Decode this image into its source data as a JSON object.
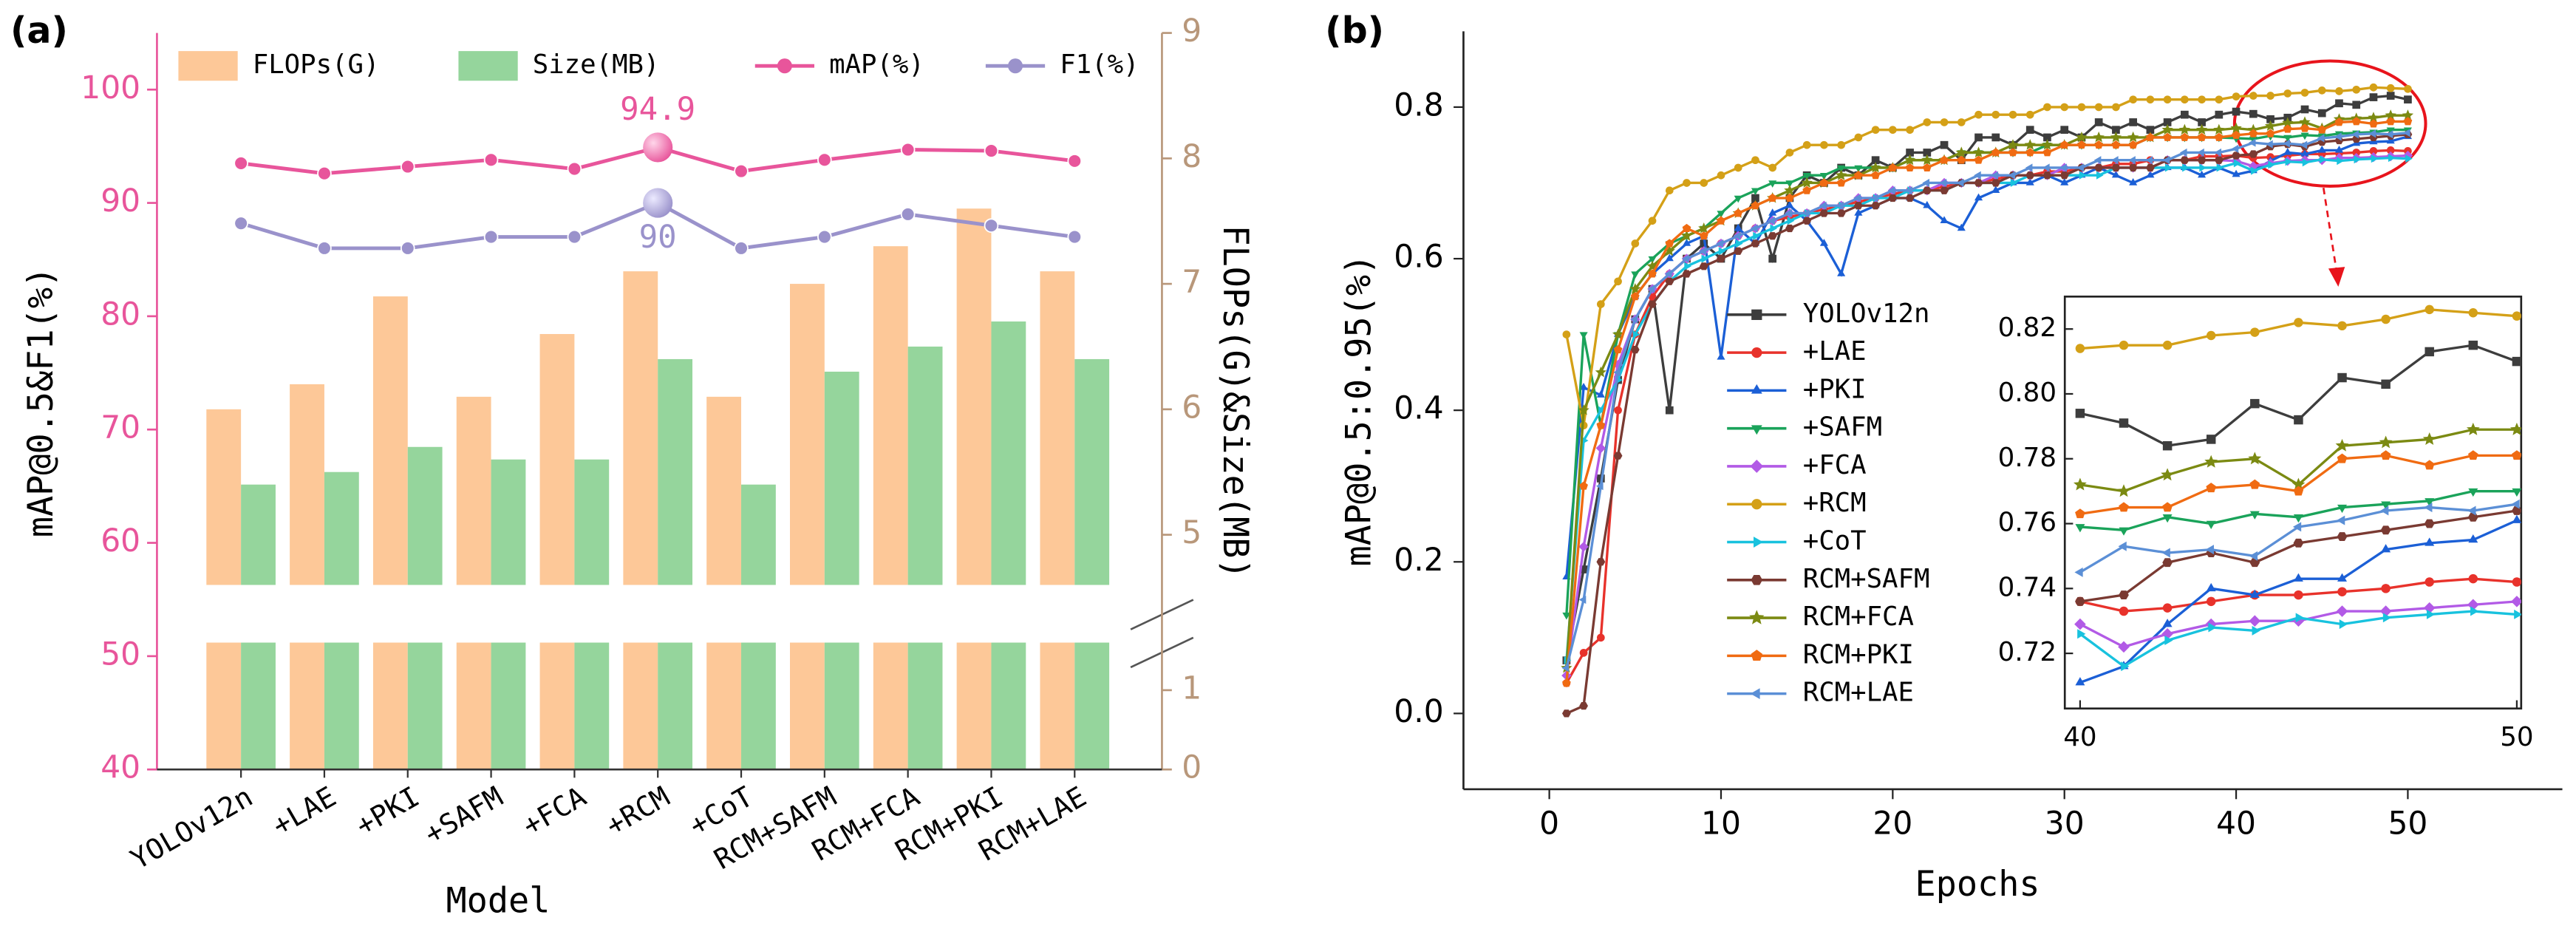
{
  "chart_data": [
    {
      "type": "bar_line",
      "panel_label": "(a)",
      "x_label": "Model",
      "y_label": "mAP@0.5&F1(%)",
      "y2_label": "FLOPs(G)&Size(MB)",
      "categories": [
        "YOLOv12n",
        "+LAE",
        "+PKI",
        "+SAFM",
        "+FCA",
        "+RCM",
        "+CoT",
        "RCM+SAFM",
        "RCM+FCA",
        "RCM+PKI",
        "RCM+LAE"
      ],
      "ylim": [
        40,
        105
      ],
      "yticks": [
        40,
        50,
        60,
        70,
        80,
        90,
        100
      ],
      "y2lim": [
        0,
        9
      ],
      "y2ticks": [
        0,
        1,
        5,
        6,
        7,
        8,
        9
      ],
      "y2break": [
        1.6,
        4.6
      ],
      "series": [
        {
          "name": "FLOPs(G)",
          "kind": "bar",
          "axis": "y2",
          "color": "#fdc898",
          "values": [
            6.0,
            6.2,
            6.9,
            6.1,
            6.6,
            7.1,
            6.1,
            7.0,
            7.3,
            7.6,
            7.1
          ]
        },
        {
          "name": "Size(MB)",
          "kind": "bar",
          "axis": "y2",
          "color": "#95d59c",
          "values": [
            5.4,
            5.5,
            5.7,
            5.6,
            5.6,
            6.4,
            5.4,
            6.3,
            6.5,
            6.7,
            6.4
          ]
        },
        {
          "name": "mAP(%)",
          "kind": "line",
          "color": "#e8559b",
          "highlight": 5,
          "values": [
            93.5,
            92.6,
            93.2,
            93.8,
            93.0,
            94.9,
            92.8,
            93.8,
            94.7,
            94.6,
            93.7
          ]
        },
        {
          "name": "F1(%)",
          "kind": "line",
          "color": "#9a92cb",
          "highlight": 5,
          "values": [
            88.2,
            86,
            86,
            87,
            87,
            90,
            86,
            87,
            89,
            88,
            87
          ]
        }
      ]
    },
    {
      "type": "line",
      "panel_label": "(b)",
      "x_label": "Epochs",
      "y_label": "mAP@0.5:0.95(%)",
      "x": [
        1,
        2,
        3,
        4,
        5,
        6,
        7,
        8,
        9,
        10,
        11,
        12,
        13,
        14,
        15,
        16,
        17,
        18,
        19,
        20,
        21,
        22,
        23,
        24,
        25,
        26,
        27,
        28,
        29,
        30,
        31,
        32,
        33,
        34,
        35,
        36,
        37,
        38,
        39,
        40,
        41,
        42,
        43,
        44,
        45,
        46,
        47,
        48,
        49,
        50
      ],
      "xlim": [
        -5,
        59
      ],
      "xticks": [
        0,
        10,
        20,
        30,
        40,
        50
      ],
      "ylim": [
        -0.1,
        0.9
      ],
      "yticks": [
        {
          "value": 0,
          "label": "0.0"
        },
        0.2,
        0.4,
        0.6,
        0.8
      ],
      "inset": {
        "xlim": [
          39.65,
          50.1
        ],
        "xticks": [
          40,
          50
        ],
        "ylim": [
          0.703,
          0.83
        ],
        "yticks": [
          0.72,
          0.74,
          0.76,
          0.78,
          {
            "value": 0.8,
            "label": "0.80"
          },
          0.82
        ]
      },
      "series": [
        {
          "name": "YOLOv12n",
          "color": "#3d3d3d",
          "marker": "square",
          "values": [
            0.07,
            0.19,
            0.31,
            0.44,
            0.52,
            0.56,
            0.4,
            0.6,
            0.62,
            0.6,
            0.64,
            0.68,
            0.6,
            0.68,
            0.71,
            0.7,
            0.72,
            0.71,
            0.73,
            0.72,
            0.74,
            0.74,
            0.75,
            0.73,
            0.76,
            0.76,
            0.75,
            0.77,
            0.76,
            0.77,
            0.76,
            0.78,
            0.77,
            0.78,
            0.77,
            0.78,
            0.79,
            0.78,
            0.79,
            0.794,
            0.791,
            0.784,
            0.786,
            0.797,
            0.792,
            0.805,
            0.803,
            0.813,
            0.815,
            0.81
          ]
        },
        {
          "name": "+LAE",
          "color": "#e8322b",
          "marker": "circle",
          "values": [
            0.04,
            0.08,
            0.1,
            0.4,
            0.5,
            0.55,
            0.58,
            0.6,
            0.61,
            0.62,
            0.63,
            0.64,
            0.65,
            0.655,
            0.66,
            0.665,
            0.67,
            0.675,
            0.68,
            0.685,
            0.69,
            0.69,
            0.695,
            0.7,
            0.7,
            0.705,
            0.71,
            0.71,
            0.715,
            0.715,
            0.72,
            0.72,
            0.725,
            0.725,
            0.73,
            0.73,
            0.73,
            0.735,
            0.735,
            0.736,
            0.733,
            0.734,
            0.736,
            0.738,
            0.738,
            0.739,
            0.74,
            0.742,
            0.743,
            0.742
          ]
        },
        {
          "name": "+PKI",
          "color": "#1b5fd6",
          "marker": "triangle",
          "values": [
            0.18,
            0.43,
            0.42,
            0.5,
            0.55,
            0.58,
            0.6,
            0.62,
            0.63,
            0.47,
            0.64,
            0.62,
            0.66,
            0.67,
            0.65,
            0.62,
            0.58,
            0.66,
            0.67,
            0.68,
            0.68,
            0.67,
            0.65,
            0.64,
            0.68,
            0.69,
            0.7,
            0.7,
            0.71,
            0.7,
            0.71,
            0.72,
            0.71,
            0.7,
            0.71,
            0.72,
            0.72,
            0.71,
            0.72,
            0.711,
            0.716,
            0.729,
            0.74,
            0.738,
            0.743,
            0.743,
            0.752,
            0.754,
            0.755,
            0.761
          ]
        },
        {
          "name": "+SAFM",
          "color": "#1aa35a",
          "marker": "triangle-down",
          "values": [
            0.13,
            0.5,
            0.38,
            0.5,
            0.58,
            0.6,
            0.62,
            0.63,
            0.64,
            0.66,
            0.68,
            0.69,
            0.7,
            0.7,
            0.71,
            0.71,
            0.72,
            0.72,
            0.72,
            0.72,
            0.73,
            0.73,
            0.73,
            0.74,
            0.74,
            0.74,
            0.74,
            0.74,
            0.75,
            0.75,
            0.75,
            0.75,
            0.75,
            0.75,
            0.76,
            0.76,
            0.76,
            0.76,
            0.76,
            0.759,
            0.758,
            0.762,
            0.76,
            0.763,
            0.762,
            0.765,
            0.766,
            0.767,
            0.77,
            0.77
          ]
        },
        {
          "name": "+FCA",
          "color": "#b25ae6",
          "marker": "diamond",
          "values": [
            0.05,
            0.22,
            0.35,
            0.46,
            0.52,
            0.56,
            0.58,
            0.6,
            0.61,
            0.62,
            0.63,
            0.64,
            0.65,
            0.66,
            0.66,
            0.67,
            0.67,
            0.68,
            0.68,
            0.69,
            0.69,
            0.69,
            0.7,
            0.7,
            0.7,
            0.71,
            0.71,
            0.71,
            0.71,
            0.72,
            0.72,
            0.72,
            0.72,
            0.72,
            0.72,
            0.73,
            0.73,
            0.73,
            0.73,
            0.729,
            0.722,
            0.726,
            0.729,
            0.73,
            0.73,
            0.733,
            0.733,
            0.734,
            0.735,
            0.736
          ]
        },
        {
          "name": "+RCM",
          "color": "#d4a017",
          "marker": "circle",
          "values": [
            0.5,
            0.38,
            0.54,
            0.57,
            0.62,
            0.65,
            0.69,
            0.7,
            0.7,
            0.71,
            0.72,
            0.73,
            0.72,
            0.74,
            0.75,
            0.75,
            0.75,
            0.76,
            0.77,
            0.77,
            0.77,
            0.78,
            0.78,
            0.78,
            0.79,
            0.79,
            0.79,
            0.79,
            0.8,
            0.8,
            0.8,
            0.8,
            0.8,
            0.81,
            0.81,
            0.81,
            0.81,
            0.81,
            0.81,
            0.814,
            0.815,
            0.815,
            0.818,
            0.819,
            0.822,
            0.821,
            0.823,
            0.826,
            0.825,
            0.824
          ]
        },
        {
          "name": "+CoT",
          "color": "#18c2de",
          "marker": "triangle-right",
          "values": [
            0.07,
            0.36,
            0.4,
            0.44,
            0.5,
            0.54,
            0.57,
            0.59,
            0.6,
            0.61,
            0.62,
            0.63,
            0.64,
            0.65,
            0.66,
            0.66,
            0.67,
            0.67,
            0.68,
            0.68,
            0.69,
            0.69,
            0.69,
            0.7,
            0.7,
            0.7,
            0.7,
            0.71,
            0.71,
            0.71,
            0.71,
            0.71,
            0.72,
            0.72,
            0.72,
            0.72,
            0.72,
            0.72,
            0.72,
            0.726,
            0.716,
            0.724,
            0.728,
            0.727,
            0.731,
            0.729,
            0.731,
            0.732,
            0.733,
            0.732
          ]
        },
        {
          "name": "RCM+SAFM",
          "color": "#7a3a32",
          "marker": "hexagon",
          "values": [
            0.0,
            0.01,
            0.2,
            0.34,
            0.48,
            0.54,
            0.57,
            0.58,
            0.59,
            0.6,
            0.61,
            0.62,
            0.63,
            0.64,
            0.65,
            0.66,
            0.66,
            0.67,
            0.67,
            0.68,
            0.68,
            0.69,
            0.69,
            0.7,
            0.7,
            0.7,
            0.71,
            0.71,
            0.71,
            0.71,
            0.72,
            0.72,
            0.72,
            0.72,
            0.72,
            0.73,
            0.73,
            0.73,
            0.73,
            0.736,
            0.738,
            0.748,
            0.751,
            0.748,
            0.754,
            0.756,
            0.758,
            0.76,
            0.762,
            0.764
          ]
        },
        {
          "name": "RCM+FCA",
          "color": "#7b8a12",
          "marker": "star",
          "values": [
            0.06,
            0.4,
            0.45,
            0.5,
            0.56,
            0.59,
            0.61,
            0.63,
            0.64,
            0.65,
            0.66,
            0.67,
            0.68,
            0.69,
            0.7,
            0.7,
            0.71,
            0.71,
            0.72,
            0.72,
            0.73,
            0.73,
            0.73,
            0.74,
            0.74,
            0.74,
            0.75,
            0.75,
            0.75,
            0.75,
            0.76,
            0.76,
            0.76,
            0.76,
            0.76,
            0.77,
            0.77,
            0.77,
            0.77,
            0.772,
            0.77,
            0.775,
            0.779,
            0.78,
            0.772,
            0.784,
            0.785,
            0.786,
            0.789,
            0.789
          ]
        },
        {
          "name": "RCM+PKI",
          "color": "#f06b12",
          "marker": "pentagon",
          "values": [
            0.04,
            0.3,
            0.38,
            0.48,
            0.55,
            0.58,
            0.62,
            0.64,
            0.63,
            0.65,
            0.66,
            0.67,
            0.68,
            0.68,
            0.69,
            0.7,
            0.7,
            0.71,
            0.71,
            0.72,
            0.72,
            0.72,
            0.73,
            0.73,
            0.73,
            0.74,
            0.74,
            0.74,
            0.74,
            0.75,
            0.75,
            0.75,
            0.75,
            0.75,
            0.76,
            0.76,
            0.76,
            0.76,
            0.76,
            0.763,
            0.765,
            0.765,
            0.771,
            0.772,
            0.77,
            0.78,
            0.781,
            0.778,
            0.781,
            0.781
          ]
        },
        {
          "name": "RCM+LAE",
          "color": "#5b8fd6",
          "marker": "triangle-left",
          "values": [
            0.06,
            0.15,
            0.3,
            0.45,
            0.52,
            0.56,
            0.58,
            0.6,
            0.61,
            0.62,
            0.63,
            0.64,
            0.65,
            0.66,
            0.66,
            0.67,
            0.67,
            0.68,
            0.68,
            0.69,
            0.69,
            0.7,
            0.7,
            0.7,
            0.71,
            0.71,
            0.71,
            0.72,
            0.72,
            0.72,
            0.72,
            0.73,
            0.73,
            0.73,
            0.73,
            0.73,
            0.74,
            0.74,
            0.74,
            0.745,
            0.753,
            0.751,
            0.752,
            0.75,
            0.759,
            0.761,
            0.764,
            0.765,
            0.764,
            0.766
          ]
        }
      ]
    }
  ]
}
